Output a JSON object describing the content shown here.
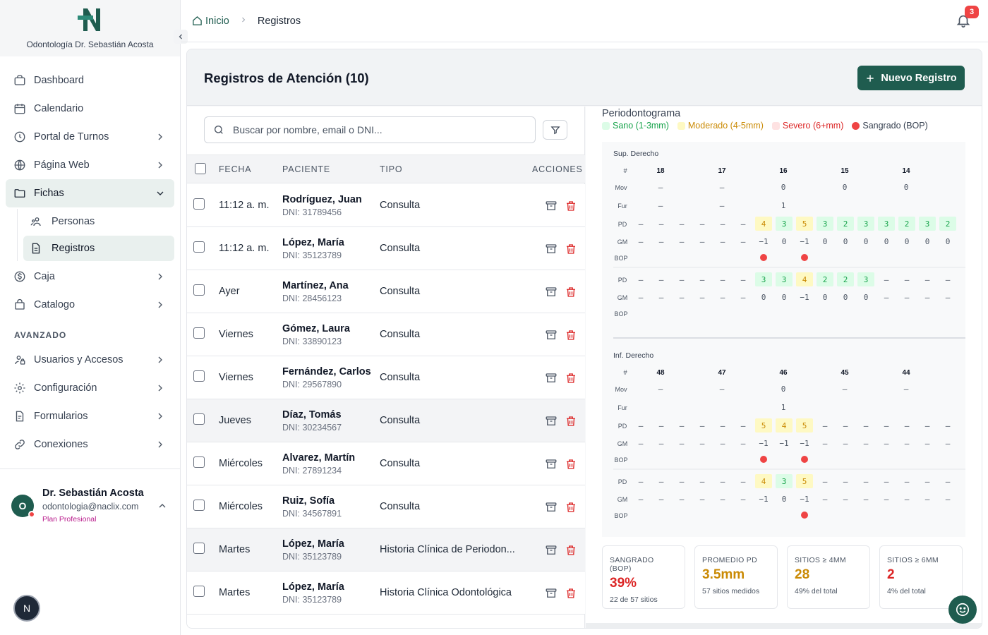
{
  "brand": {
    "name": "Odontología Dr. Sebastián Acosta"
  },
  "nav": {
    "items": [
      {
        "label": "Dashboard"
      },
      {
        "label": "Calendario"
      },
      {
        "label": "Portal de Turnos"
      },
      {
        "label": "Página Web"
      },
      {
        "label": "Fichas"
      },
      {
        "label": "Personas"
      },
      {
        "label": "Registros"
      },
      {
        "label": "Caja"
      },
      {
        "label": "Catalogo"
      }
    ],
    "section_label": "AVANZADO",
    "advanced": [
      {
        "label": "Usuarios y Accesos"
      },
      {
        "label": "Configuración"
      },
      {
        "label": "Formularios"
      },
      {
        "label": "Conexiones"
      }
    ]
  },
  "user": {
    "initial": "O",
    "name": "Dr. Sebastián Acosta",
    "email": "odontologia@naclix.com",
    "plan": "Plan Profesional",
    "float_initial": "N"
  },
  "breadcrumb": {
    "home": "Inicio",
    "current": "Registros"
  },
  "notifications": {
    "count": "3"
  },
  "main": {
    "title": "Registros de Atención (10)",
    "new_button": "Nuevo Registro",
    "search_placeholder": "Buscar por nombre, email o DNI...",
    "columns": [
      "FECHA",
      "PACIENTE",
      "TIPO",
      "ACCIONES"
    ],
    "rows": [
      {
        "date": "11:12 a. m.",
        "name": "Rodríguez, Juan",
        "dni": "DNI: 31789456",
        "tipo": "Consulta"
      },
      {
        "date": "11:12 a. m.",
        "name": "López, María",
        "dni": "DNI: 35123789",
        "tipo": "Consulta"
      },
      {
        "date": "Ayer",
        "name": "Martínez, Ana",
        "dni": "DNI: 28456123",
        "tipo": "Consulta"
      },
      {
        "date": "Viernes",
        "name": "Gómez, Laura",
        "dni": "DNI: 33890123",
        "tipo": "Consulta"
      },
      {
        "date": "Viernes",
        "name": "Fernández, Carlos",
        "dni": "DNI: 29567890",
        "tipo": "Consulta"
      },
      {
        "date": "Jueves",
        "name": "Díaz, Tomás",
        "dni": "DNI: 30234567",
        "tipo": "Consulta"
      },
      {
        "date": "Miércoles",
        "name": "Alvarez, Martín",
        "dni": "DNI: 27891234",
        "tipo": "Consulta"
      },
      {
        "date": "Miércoles",
        "name": "Ruiz, Sofía",
        "dni": "DNI: 34567891",
        "tipo": "Consulta"
      },
      {
        "date": "Martes",
        "name": "López, María",
        "dni": "DNI: 35123789",
        "tipo": "Historia Clínica de Periodon..."
      },
      {
        "date": "Martes",
        "name": "López, María",
        "dni": "DNI: 35123789",
        "tipo": "Historia Clínica Odontológica"
      }
    ]
  },
  "perio": {
    "title": "Periodontograma",
    "legend": [
      {
        "label": "Sano (1-3mm)",
        "color": "#16a34a",
        "swatch": "#dcfce7"
      },
      {
        "label": "Moderado (4-5mm)",
        "color": "#ca8a04",
        "swatch": "#fef9c3"
      },
      {
        "label": "Severo (6+mm)",
        "color": "#dc2626",
        "swatch": "#fee2e2"
      },
      {
        "label": "Sangrado (BOP)",
        "color": "#374151",
        "swatch": "#ef4444"
      }
    ],
    "upper": {
      "label": "Sup. Derecho",
      "teeth": [
        "18",
        "17",
        "16",
        "15",
        "14"
      ],
      "mov": [
        "–",
        "–",
        "0",
        "0",
        "0"
      ],
      "fur": [
        "–",
        "–",
        "1",
        "",
        ""
      ],
      "pd_buccal": [
        "–",
        "–",
        "–",
        "–",
        "–",
        "–",
        "4",
        "3",
        "5",
        "3",
        "2",
        "3",
        "3",
        "2",
        "3",
        "2"
      ],
      "gm_buccal": [
        "–",
        "–",
        "–",
        "–",
        "–",
        "–",
        "−1",
        "0",
        "−1",
        "0",
        "0",
        "0",
        "0",
        "0",
        "0",
        "0"
      ],
      "bop_buccal": [
        "",
        "",
        "",
        "",
        "",
        "",
        "1",
        "",
        "1",
        "",
        "",
        "",
        "",
        "",
        "",
        ""
      ],
      "pd_lingual": [
        "–",
        "–",
        "–",
        "–",
        "–",
        "–",
        "3",
        "3",
        "4",
        "2",
        "2",
        "3",
        "–",
        "–",
        "–",
        "–"
      ],
      "gm_lingual": [
        "–",
        "–",
        "–",
        "–",
        "–",
        "–",
        "0",
        "0",
        "−1",
        "0",
        "0",
        "0",
        "–",
        "–",
        "–",
        "–"
      ]
    },
    "lower": {
      "label": "Inf. Derecho",
      "teeth": [
        "48",
        "47",
        "46",
        "45",
        "44"
      ],
      "mov": [
        "–",
        "–",
        "0",
        "–",
        "–"
      ],
      "fur": [
        "",
        "",
        "1",
        "",
        ""
      ],
      "pd_buccal": [
        "–",
        "–",
        "–",
        "–",
        "–",
        "–",
        "5",
        "4",
        "5",
        "–",
        "–",
        "–",
        "–",
        "–",
        "–",
        "–"
      ],
      "gm_buccal": [
        "–",
        "–",
        "–",
        "–",
        "–",
        "–",
        "−1",
        "−1",
        "−1",
        "–",
        "–",
        "–",
        "–",
        "–",
        "–",
        "–"
      ],
      "bop_buccal": [
        "",
        "",
        "",
        "",
        "",
        "",
        "1",
        "",
        "1",
        "",
        "",
        "",
        "",
        "",
        "",
        ""
      ],
      "pd_lingual": [
        "–",
        "–",
        "–",
        "–",
        "–",
        "–",
        "4",
        "3",
        "5",
        "–",
        "–",
        "–",
        "–",
        "–",
        "–",
        "–"
      ],
      "gm_lingual": [
        "–",
        "–",
        "–",
        "–",
        "–",
        "–",
        "−1",
        "0",
        "−1",
        "–",
        "–",
        "–",
        "–",
        "–",
        "–",
        "–"
      ],
      "bop_lingual": [
        "",
        "",
        "",
        "",
        "",
        "",
        "",
        "",
        "1",
        "",
        "",
        "",
        "",
        "",
        "",
        ""
      ]
    },
    "row_labels": {
      "hash": "#",
      "mov": "Mov",
      "fur": "Fur",
      "pd": "PD",
      "gm": "GM",
      "bop": "BOP"
    },
    "stats": [
      {
        "label": "SANGRADO (BOP)",
        "value": "39%",
        "sub": "22 de 57 sitios",
        "color": "#dc2626"
      },
      {
        "label": "PROMEDIO PD",
        "value": "3.5mm",
        "sub": "57 sitios medidos",
        "color": "#ca8a04"
      },
      {
        "label": "SITIOS ≥ 4MM",
        "value": "28",
        "sub": "49% del total",
        "color": "#ca8a04"
      },
      {
        "label": "SITIOS ≥ 6MM",
        "value": "2",
        "sub": "4% del total",
        "color": "#dc2626"
      }
    ]
  }
}
